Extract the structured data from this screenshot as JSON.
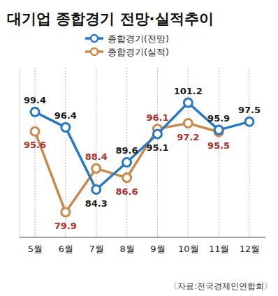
{
  "chart_data": {
    "type": "line",
    "title": "대기업 종합경기 전망·실적추이",
    "source": "〈자료:전국경제인연합회〉",
    "categories": [
      "5월",
      "6월",
      "7월",
      "8월",
      "9월",
      "10월",
      "11월",
      "12월"
    ],
    "series": [
      {
        "name": "종합경기(전망)",
        "color": "#2878c3",
        "marker": "circle",
        "line_style": "solid",
        "values": [
          99.4,
          96.4,
          84.3,
          89.6,
          95.1,
          101.2,
          95.9,
          97.5
        ]
      },
      {
        "name": "종합경기(실적)",
        "color": "#c98a4e",
        "marker": "circle",
        "line_style": "solid",
        "values": [
          95.6,
          79.9,
          88.4,
          86.6,
          96.1,
          97.2,
          95.5,
          null
        ]
      }
    ],
    "ylim": [
      75,
      108
    ],
    "yticks": [],
    "grid": true,
    "legend": "top",
    "data_labels": true,
    "tick_labels": "x"
  }
}
